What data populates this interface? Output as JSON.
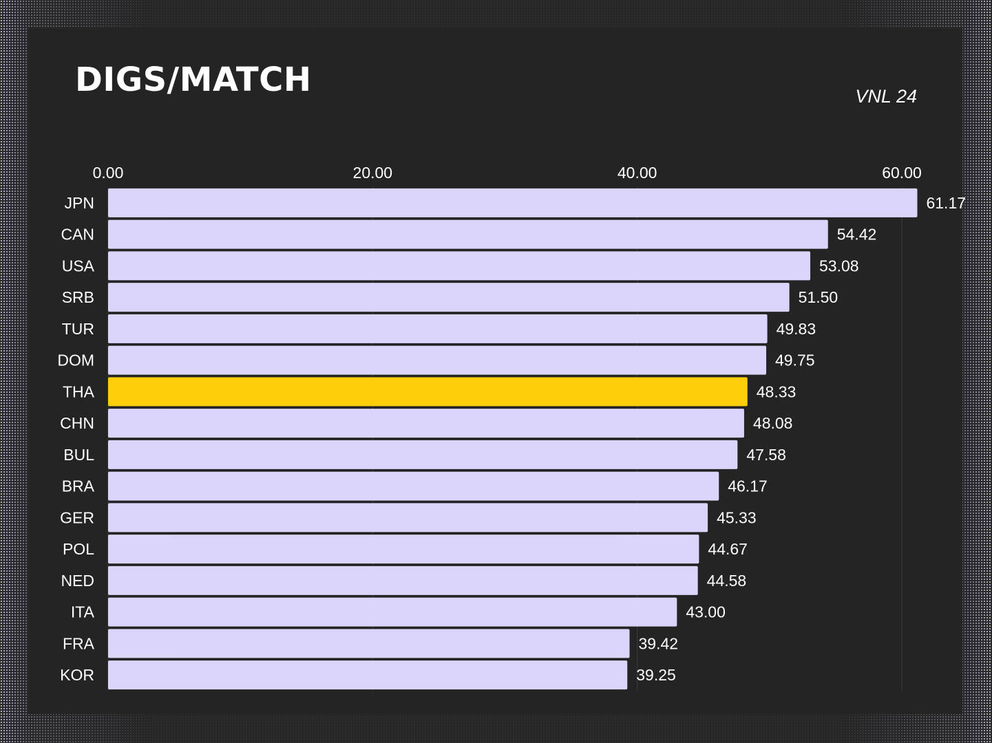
{
  "title": "DIGS/MATCH",
  "subtitle": "VNL 24",
  "colors": {
    "background": "#242424",
    "bar": "#dcd5fb",
    "highlight": "#ffce0a",
    "text": "#ffffff",
    "grid": "#3d3d3d"
  },
  "chart_data": {
    "type": "bar",
    "orientation": "horizontal",
    "axis_position": "top",
    "grid": true,
    "xlim": [
      0,
      60
    ],
    "ticks": [
      {
        "value": 0,
        "label": "0.00"
      },
      {
        "value": 20,
        "label": "20.00"
      },
      {
        "value": 40,
        "label": "40.00"
      },
      {
        "value": 60,
        "label": "60.00"
      }
    ],
    "highlight_category": "THA",
    "categories": [
      "JPN",
      "CAN",
      "USA",
      "SRB",
      "TUR",
      "DOM",
      "THA",
      "CHN",
      "BUL",
      "BRA",
      "GER",
      "POL",
      "NED",
      "ITA",
      "FRA",
      "KOR"
    ],
    "values": [
      61.17,
      54.42,
      53.08,
      51.5,
      49.83,
      49.75,
      48.33,
      48.08,
      47.58,
      46.17,
      45.33,
      44.67,
      44.58,
      43.0,
      39.42,
      39.25
    ],
    "value_labels": [
      "61.17",
      "54.42",
      "53.08",
      "51.50",
      "49.83",
      "49.75",
      "48.33",
      "48.08",
      "47.58",
      "46.17",
      "45.33",
      "44.67",
      "44.58",
      "43.00",
      "39.42",
      "39.25"
    ]
  }
}
